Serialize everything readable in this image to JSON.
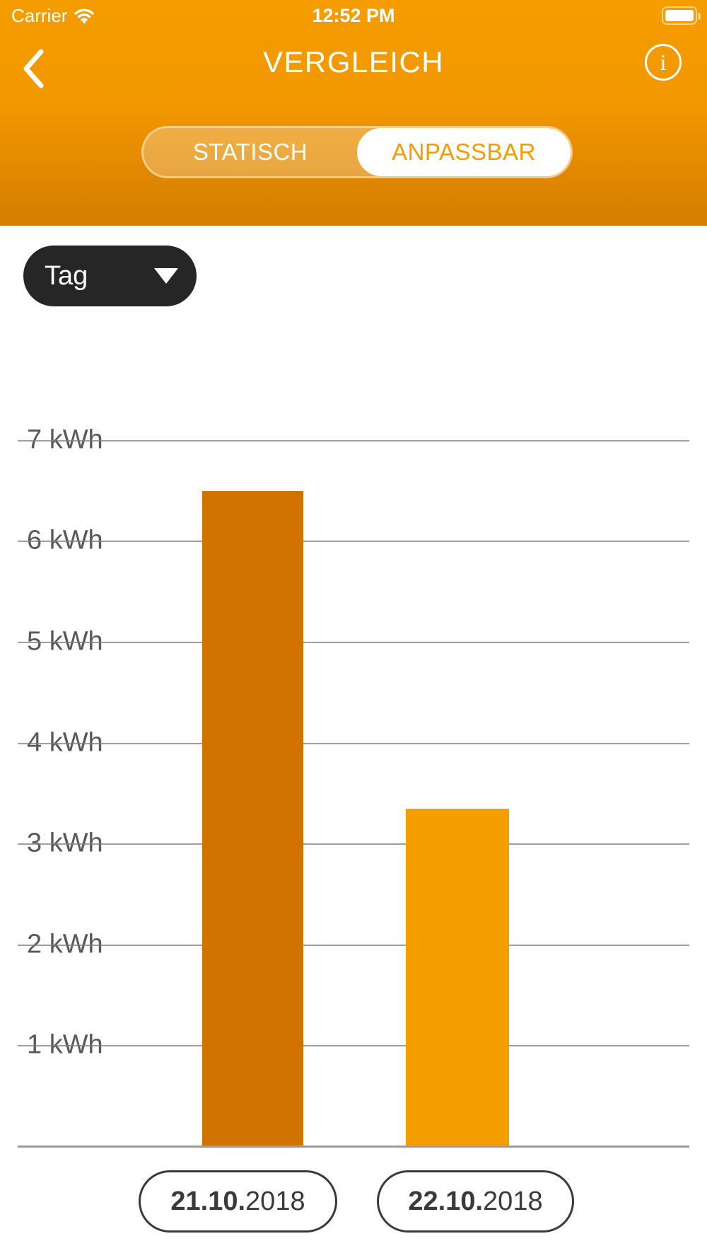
{
  "status_bar": {
    "carrier": "Carrier",
    "time": "12:52 PM",
    "wifi_icon": "wifi-icon",
    "battery_icon": "battery-full-icon"
  },
  "header": {
    "title": "VERGLEICH",
    "back_icon": "chevron-left-icon",
    "info_icon_glyph": "i",
    "tabs": [
      {
        "label": "STATISCH",
        "selected": false
      },
      {
        "label": "ANPASSBAR",
        "selected": true
      }
    ]
  },
  "controls": {
    "period_dropdown": {
      "value": "Tag",
      "icon": "caret-down-icon"
    }
  },
  "chart_data": {
    "type": "bar",
    "categories": [
      "21.10.2018",
      "22.10.2018"
    ],
    "values": [
      6.5,
      3.35
    ],
    "unit": "kWh",
    "yticks": [
      "7 kWh",
      "6 kWh",
      "5 kWh",
      "4 kWh",
      "3 kWh",
      "2 kWh",
      "1 kWh"
    ],
    "ytick_values": [
      7,
      6,
      5,
      4,
      3,
      2,
      1
    ],
    "ylim": [
      0,
      7
    ],
    "grid": true,
    "legend": "none",
    "title": "",
    "xlabel": "",
    "ylabel": "",
    "bar_colors": [
      "#d17300",
      "#f59e00"
    ]
  },
  "footer": {
    "date_buttons": [
      {
        "day_month": "21.10.",
        "year": "2018"
      },
      {
        "day_month": "22.10.",
        "year": "2018"
      }
    ]
  },
  "colors": {
    "header_gradient_top": "#f49c00",
    "header_gradient_bottom": "#d57c00",
    "accent_orange": "#f59c00",
    "dropdown_bg": "#262626",
    "grid_line": "#7d7d7d",
    "axis_label": "#58595b",
    "date_button_border": "#3a3a3a"
  }
}
